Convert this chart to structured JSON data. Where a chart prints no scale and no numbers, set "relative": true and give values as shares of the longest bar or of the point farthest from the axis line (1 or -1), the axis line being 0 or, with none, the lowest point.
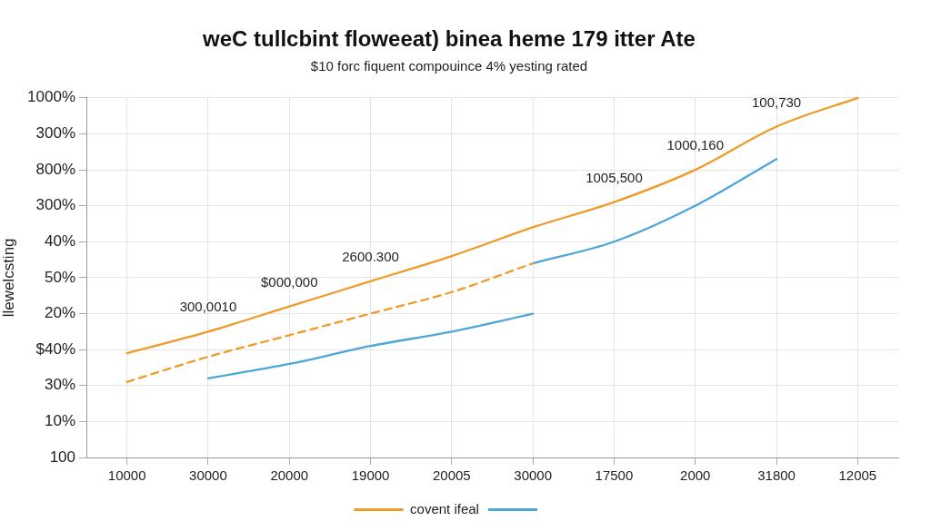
{
  "chart_data": {
    "type": "line",
    "title": "weC tullcbint floweeat) binea heme 179 itter Ate",
    "subtitle": "$10 forc fiquent compouince 4% yesting rated",
    "ylabel": "llewelcsting",
    "relative": true,
    "categories": [
      "10000",
      "30000",
      "20000",
      "19000",
      "20005",
      "30000",
      "17500",
      "2000",
      "31800",
      "12005"
    ],
    "series": [
      {
        "name": "covent ifeal",
        "color": "#f09a28",
        "values": [
          0.29,
          0.35,
          0.42,
          0.49,
          0.56,
          0.64,
          0.71,
          0.8,
          0.92,
          1
        ]
      },
      {
        "color": "#f09a28",
        "line_style": "dashed",
        "values": [
          0.21,
          0.28,
          0.34,
          0.4,
          0.46,
          0.54,
          null,
          null,
          null,
          null
        ]
      },
      {
        "color": "#4ea6d8",
        "values": [
          null,
          0.22,
          0.26,
          0.31,
          0.35,
          0.4,
          null,
          null,
          null,
          null
        ]
      },
      {
        "color": "#4ea6d8",
        "values": [
          null,
          null,
          null,
          null,
          null,
          0.54,
          0.6,
          0.7,
          0.83,
          null
        ]
      }
    ],
    "annotations": [
      "1000%",
      "300%",
      "800%",
      "300%",
      "40%",
      "50%",
      "20%",
      "$40%",
      "30%",
      "10%",
      "100",
      {
        "text": "300,0010",
        "x": "30000",
        "y": 0.35
      },
      {
        "text": "$000,000",
        "x": "20000",
        "y": 0.42
      },
      {
        "text": "2600.300",
        "x": "19000",
        "y": 0.49
      },
      {
        "text": "1005,500",
        "x": "17500",
        "y": 0.71
      },
      {
        "text": "1000,160",
        "x": "2000",
        "y": 0.8
      },
      {
        "text": "100,730",
        "x": "31800",
        "y": 0.92
      }
    ],
    "grid": true,
    "legend": "bottom",
    "marker": "none"
  }
}
